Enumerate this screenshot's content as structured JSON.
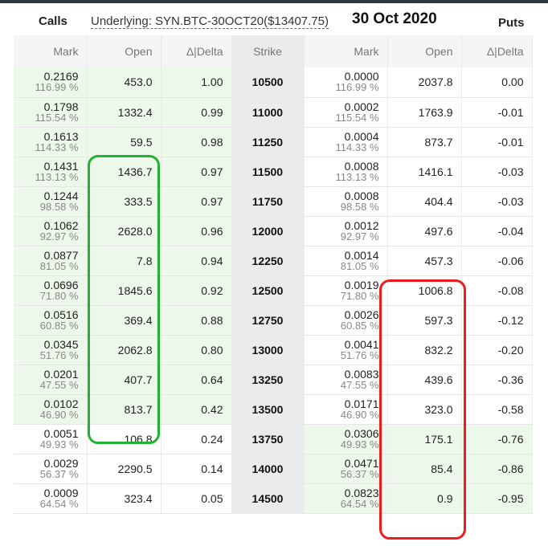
{
  "header": {
    "calls_label": "Calls",
    "underlying_label": "Underlying: SYN.BTC-30OCT20($13407.75)",
    "expiry_date": "30 Oct 2020",
    "puts_label": "Puts"
  },
  "columns": [
    "Mark",
    "Open",
    "Δ|Delta",
    "Strike",
    "Mark",
    "Open",
    "Δ|Delta"
  ],
  "rows": [
    {
      "call_mark": "0.2169",
      "call_iv": "116.99 %",
      "call_open": "453.0",
      "call_delta": "1.00",
      "strike": "10500",
      "put_mark": "0.0000",
      "put_iv": "116.99 %",
      "put_open": "2037.8",
      "put_delta": "0.00"
    },
    {
      "call_mark": "0.1798",
      "call_iv": "115.54 %",
      "call_open": "1332.4",
      "call_delta": "0.99",
      "strike": "11000",
      "put_mark": "0.0002",
      "put_iv": "115.54 %",
      "put_open": "1763.9",
      "put_delta": "-0.01"
    },
    {
      "call_mark": "0.1613",
      "call_iv": "114.33 %",
      "call_open": "59.5",
      "call_delta": "0.98",
      "strike": "11250",
      "put_mark": "0.0004",
      "put_iv": "114.33 %",
      "put_open": "873.7",
      "put_delta": "-0.01"
    },
    {
      "call_mark": "0.1431",
      "call_iv": "113.13 %",
      "call_open": "1436.7",
      "call_delta": "0.97",
      "strike": "11500",
      "put_mark": "0.0008",
      "put_iv": "113.13 %",
      "put_open": "1416.1",
      "put_delta": "-0.03"
    },
    {
      "call_mark": "0.1244",
      "call_iv": "98.58 %",
      "call_open": "333.5",
      "call_delta": "0.97",
      "strike": "11750",
      "put_mark": "0.0008",
      "put_iv": "98.58 %",
      "put_open": "404.4",
      "put_delta": "-0.03"
    },
    {
      "call_mark": "0.1062",
      "call_iv": "92.97 %",
      "call_open": "2628.0",
      "call_delta": "0.96",
      "strike": "12000",
      "put_mark": "0.0012",
      "put_iv": "92.97 %",
      "put_open": "497.6",
      "put_delta": "-0.04"
    },
    {
      "call_mark": "0.0877",
      "call_iv": "81.05 %",
      "call_open": "7.8",
      "call_delta": "0.94",
      "strike": "12250",
      "put_mark": "0.0014",
      "put_iv": "81.05 %",
      "put_open": "457.3",
      "put_delta": "-0.06"
    },
    {
      "call_mark": "0.0696",
      "call_iv": "71.80 %",
      "call_open": "1845.6",
      "call_delta": "0.92",
      "strike": "12500",
      "put_mark": "0.0019",
      "put_iv": "71.80 %",
      "put_open": "1006.8",
      "put_delta": "-0.08"
    },
    {
      "call_mark": "0.0516",
      "call_iv": "60.85 %",
      "call_open": "369.4",
      "call_delta": "0.88",
      "strike": "12750",
      "put_mark": "0.0026",
      "put_iv": "60.85 %",
      "put_open": "597.3",
      "put_delta": "-0.12"
    },
    {
      "call_mark": "0.0345",
      "call_iv": "51.76 %",
      "call_open": "2062.8",
      "call_delta": "0.80",
      "strike": "13000",
      "put_mark": "0.0041",
      "put_iv": "51.76 %",
      "put_open": "832.2",
      "put_delta": "-0.20"
    },
    {
      "call_mark": "0.0201",
      "call_iv": "47.55 %",
      "call_open": "407.7",
      "call_delta": "0.64",
      "strike": "13250",
      "put_mark": "0.0083",
      "put_iv": "47.55 %",
      "put_open": "439.6",
      "put_delta": "-0.36"
    },
    {
      "call_mark": "0.0102",
      "call_iv": "46.90 %",
      "call_open": "813.7",
      "call_delta": "0.42",
      "strike": "13500",
      "put_mark": "0.0171",
      "put_iv": "46.90 %",
      "put_open": "323.0",
      "put_delta": "-0.58"
    },
    {
      "call_mark": "0.0051",
      "call_iv": "49.93 %",
      "call_open": "106.8",
      "call_delta": "0.24",
      "strike": "13750",
      "put_mark": "0.0306",
      "put_iv": "49.93 %",
      "put_open": "175.1",
      "put_delta": "-0.76"
    },
    {
      "call_mark": "0.0029",
      "call_iv": "56.37 %",
      "call_open": "2290.5",
      "call_delta": "0.14",
      "strike": "14000",
      "put_mark": "0.0471",
      "put_iv": "56.37 %",
      "put_open": "85.4",
      "put_delta": "-0.86"
    },
    {
      "call_mark": "0.0009",
      "call_iv": "64.54 %",
      "call_open": "323.4",
      "call_delta": "0.05",
      "strike": "14500",
      "put_mark": "0.0823",
      "put_iv": "64.54 %",
      "put_open": "0.9",
      "put_delta": "-0.95"
    }
  ],
  "colors": {
    "itm_fill": "#ecf8ea",
    "strike_fill": "#e9ebec",
    "highlight_green": "#22b333",
    "highlight_red": "#ee1c1c"
  }
}
